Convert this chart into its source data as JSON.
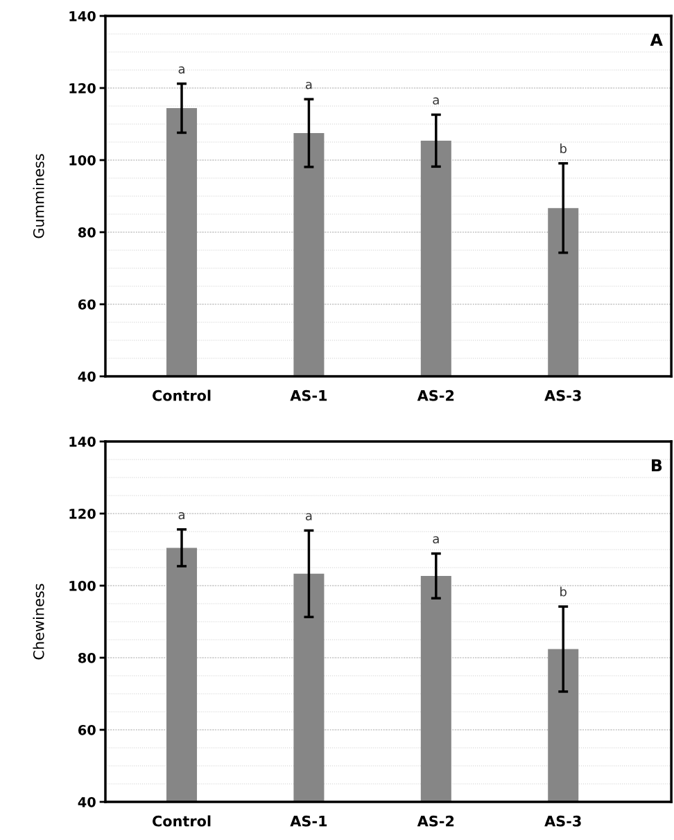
{
  "chart_data": [
    {
      "type": "bar",
      "ylabel": "Gumminess",
      "categories": [
        "Control",
        "AS-1",
        "AS-2",
        "AS-3"
      ],
      "values": [
        114.4,
        107.5,
        105.4,
        86.7
      ],
      "errors": [
        6.8,
        9.4,
        7.2,
        12.4
      ],
      "color": "#868686",
      "ylim": [
        40,
        140
      ],
      "yticks": [
        40,
        60,
        80,
        100,
        120,
        140
      ],
      "grid": "y",
      "annotations": [
        {
          "text": "a",
          "x": "Control",
          "y": 121.2
        },
        {
          "text": "a",
          "x": "AS-1",
          "y": 116.9
        },
        {
          "text": "a",
          "x": "AS-2",
          "y": 112.6
        },
        {
          "text": "b",
          "x": "AS-3",
          "y": 99.1
        },
        "A"
      ]
    },
    {
      "type": "bar",
      "ylabel": "Chewiness",
      "categories": [
        "Control",
        "AS-1",
        "AS-2",
        "AS-3"
      ],
      "values": [
        110.5,
        103.3,
        102.7,
        82.4
      ],
      "errors": [
        5.1,
        12.0,
        6.2,
        11.8
      ],
      "color": "#868686",
      "ylim": [
        40,
        140
      ],
      "yticks": [
        40,
        60,
        80,
        100,
        120,
        140
      ],
      "grid": "y",
      "annotations": [
        {
          "text": "a",
          "x": "Control",
          "y": 115.6
        },
        {
          "text": "a",
          "x": "AS-1",
          "y": 115.3
        },
        {
          "text": "a",
          "x": "AS-2",
          "y": 108.9
        },
        {
          "text": "b",
          "x": "AS-3",
          "y": 94.2
        },
        "B"
      ]
    }
  ]
}
